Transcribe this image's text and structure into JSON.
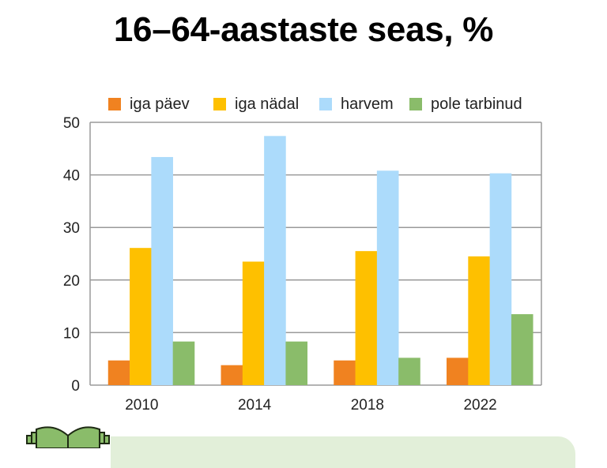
{
  "header": {
    "title_line_1_partial": "",
    "title_line_2": "16–64-aastaste seas, %"
  },
  "legend": [
    {
      "label": "iga päev",
      "color": "#f08220"
    },
    {
      "label": "iga nädal",
      "color": "#fec000"
    },
    {
      "label": "harvem",
      "color": "#acdbfb"
    },
    {
      "label": "pole tarbinud",
      "color": "#8abc6a"
    }
  ],
  "chart_data": {
    "type": "bar",
    "title": "16–64-aastaste seas, %",
    "xlabel": "",
    "ylabel": "",
    "categories": [
      "2010",
      "2014",
      "2018",
      "2022"
    ],
    "series": [
      {
        "name": "iga päev",
        "color": "#f08220",
        "values": [
          4.7,
          3.8,
          4.7,
          5.2
        ]
      },
      {
        "name": "iga nädal",
        "color": "#fec000",
        "values": [
          26.1,
          23.5,
          25.5,
          24.5
        ]
      },
      {
        "name": "harvem",
        "color": "#acdbfb",
        "values": [
          43.4,
          47.4,
          40.8,
          40.3
        ]
      },
      {
        "name": "pole tarbinud",
        "color": "#8abc6a",
        "values": [
          8.3,
          8.3,
          5.2,
          13.5
        ]
      }
    ],
    "ylim": [
      0,
      50
    ],
    "yticks": [
      0,
      10,
      20,
      30,
      40,
      50
    ],
    "ytick_labels": [
      "0",
      "10",
      "20",
      "30",
      "40",
      "50"
    ],
    "grid": true,
    "legend_position": "top"
  },
  "footer": {
    "icon": "open-book-icon",
    "banner_color": "#e2efd9"
  }
}
